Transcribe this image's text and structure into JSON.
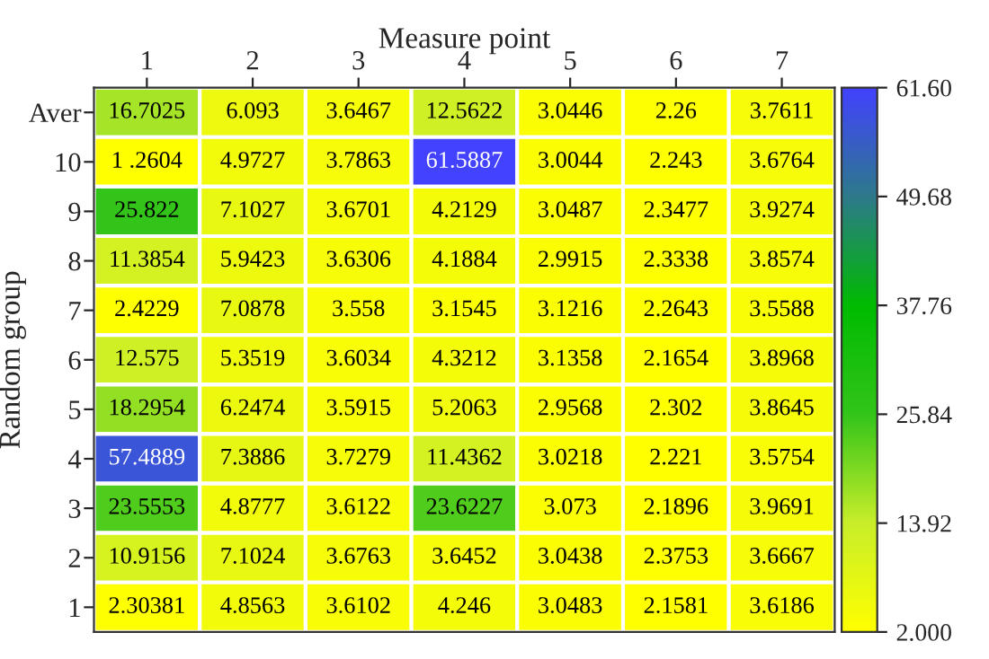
{
  "chart_data": {
    "type": "heatmap",
    "xlabel": "Measure point",
    "ylabel": "Random group",
    "categories": [
      "1",
      "2",
      "3",
      "4",
      "5",
      "6",
      "7"
    ],
    "y_categories": [
      "Aver",
      "10",
      "9",
      "8",
      "7",
      "6",
      "5",
      "4",
      "3",
      "2",
      "1"
    ],
    "cells": [
      [
        16.7025,
        6.093,
        3.6467,
        12.5622,
        3.0446,
        2.26,
        3.7611
      ],
      [
        1.2604,
        4.9727,
        3.7863,
        61.5887,
        3.0044,
        2.243,
        3.6764
      ],
      [
        25.822,
        7.1027,
        3.6701,
        4.2129,
        3.0487,
        2.3477,
        3.9274
      ],
      [
        11.3854,
        5.9423,
        3.6306,
        4.1884,
        2.9915,
        2.3338,
        3.8574
      ],
      [
        2.4229,
        7.0878,
        3.558,
        3.1545,
        3.1216,
        2.2643,
        3.5588
      ],
      [
        12.575,
        5.3519,
        3.6034,
        4.3212,
        3.1358,
        2.1654,
        3.8968
      ],
      [
        18.2954,
        6.2474,
        3.5915,
        5.2063,
        2.9568,
        2.302,
        3.8645
      ],
      [
        57.4889,
        7.3886,
        3.7279,
        11.4362,
        3.0218,
        2.221,
        3.5754
      ],
      [
        23.5553,
        4.8777,
        3.6122,
        23.6227,
        3.073,
        2.1896,
        3.9691
      ],
      [
        10.9156,
        7.1024,
        3.6763,
        3.6452,
        3.0438,
        2.3753,
        3.6667
      ],
      [
        2.30381,
        4.8563,
        3.6102,
        4.246,
        3.0483,
        2.1581,
        3.6186
      ]
    ],
    "cell_labels": [
      [
        "16.7025",
        "6.093",
        "3.6467",
        "12.5622",
        "3.0446",
        "2.26",
        "3.7611"
      ],
      [
        "1 .2604",
        "4.9727",
        "3.7863",
        "61.5887",
        "3.0044",
        "2.243",
        "3.6764"
      ],
      [
        "25.822",
        "7.1027",
        "3.6701",
        "4.2129",
        "3.0487",
        "2.3477",
        "3.9274"
      ],
      [
        "11.3854",
        "5.9423",
        "3.6306",
        "4.1884",
        "2.9915",
        "2.3338",
        "3.8574"
      ],
      [
        "2.4229",
        "7.0878",
        "3.558",
        "3.1545",
        "3.1216",
        "2.2643",
        "3.5588"
      ],
      [
        "12.575",
        "5.3519",
        "3.6034",
        "4.3212",
        "3.1358",
        "2.1654",
        "3.8968"
      ],
      [
        "18.2954",
        "6.2474",
        "3.5915",
        "5.2063",
        "2.9568",
        "2.302",
        "3.8645"
      ],
      [
        "57.4889",
        "7.3886",
        "3.7279",
        "11.4362",
        "3.0218",
        "2.221",
        "3.5754"
      ],
      [
        "23.5553",
        "4.8777",
        "3.6122",
        "23.6227",
        "3.073",
        "2.1896",
        "3.9691"
      ],
      [
        "10.9156",
        "7.1024",
        "3.6763",
        "3.6452",
        "3.0438",
        "2.3753",
        "3.6667"
      ],
      [
        "2.30381",
        "4.8563",
        "3.6102",
        "4.246",
        "3.0483",
        "2.1581",
        "3.6186"
      ]
    ],
    "clim": [
      2.0,
      61.6
    ],
    "cticks": [
      {
        "value": 2.0,
        "label": "2.000"
      },
      {
        "value": 13.92,
        "label": "13.92"
      },
      {
        "value": 25.84,
        "label": "25.84"
      },
      {
        "value": 37.76,
        "label": "37.76"
      },
      {
        "value": 49.68,
        "label": "49.68"
      },
      {
        "value": 61.6,
        "label": "61.60"
      }
    ]
  }
}
